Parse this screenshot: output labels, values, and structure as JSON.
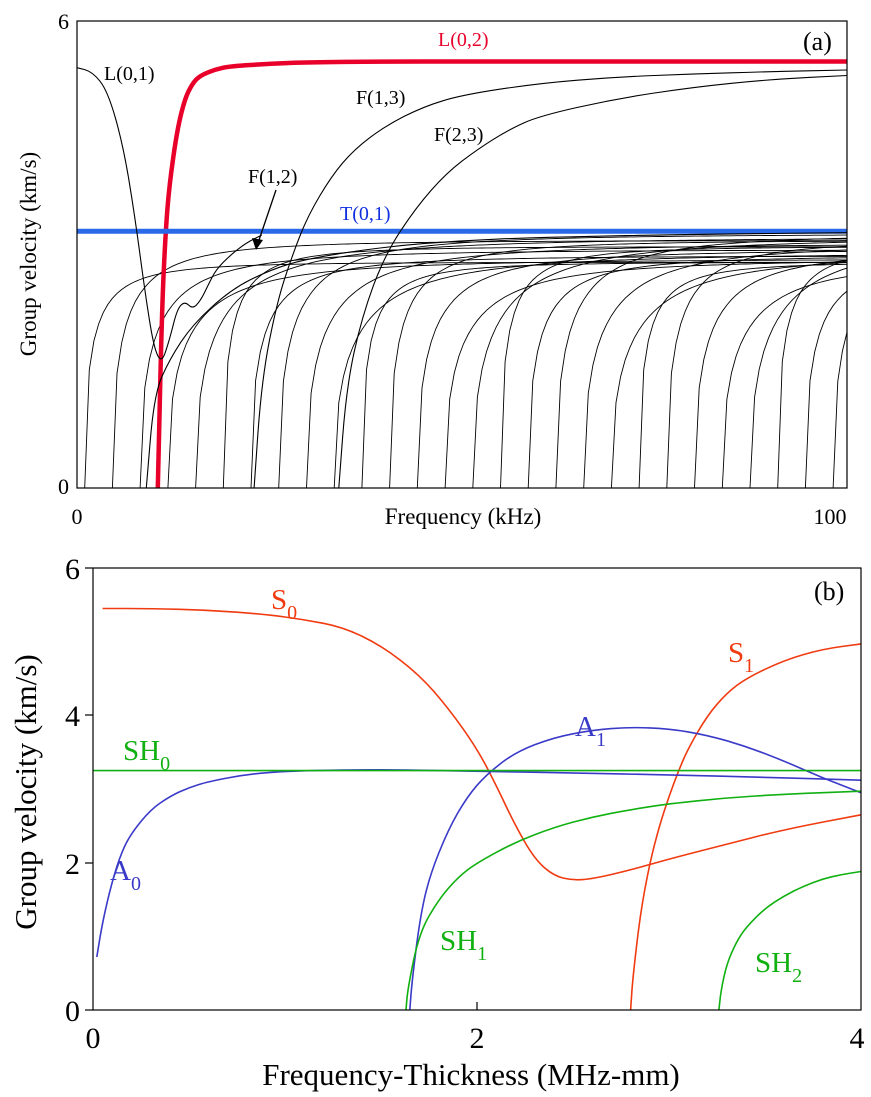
{
  "chart_data": [
    {
      "type": "line",
      "panel_label": "(a)",
      "xlabel": "Frequency (kHz)",
      "ylabel": "Group velocity (km/s)",
      "xlim": [
        0,
        100
      ],
      "ylim": [
        0,
        6
      ],
      "x_ticks": [
        "0",
        "100"
      ],
      "y_ticks": [
        "0",
        "6"
      ],
      "grid": false,
      "annotations": [
        {
          "text": "L(0,2)",
          "color": "#e8002a"
        },
        {
          "text": "L(0,1)",
          "color": "#000000"
        },
        {
          "text": "F(1,3)",
          "color": "#000000"
        },
        {
          "text": "F(2,3)",
          "color": "#000000"
        },
        {
          "text": "F(1,2)",
          "color": "#000000"
        },
        {
          "text": "T(0,1)",
          "color": "#1030e0"
        }
      ],
      "series": [
        {
          "name": "L(0,2)",
          "color": "#e8002a",
          "x": [
            10.5,
            11,
            11.5,
            12,
            13,
            14,
            15,
            16,
            18,
            20,
            25,
            30,
            40,
            50,
            60,
            70,
            80,
            90,
            100
          ],
          "y": [
            0,
            2.2,
            3.3,
            3.9,
            4.6,
            5.0,
            5.2,
            5.3,
            5.38,
            5.42,
            5.45,
            5.47,
            5.48,
            5.48,
            5.48,
            5.48,
            5.48,
            5.48,
            5.48
          ]
        },
        {
          "name": "T(0,1)",
          "color": "#2a6ae8",
          "x": [
            0,
            100
          ],
          "y": [
            3.3,
            3.3
          ]
        },
        {
          "name": "L(0,1)",
          "color": "#000000",
          "x": [
            0,
            2,
            4,
            6,
            7.5,
            9,
            10,
            11,
            12,
            13,
            14,
            15,
            16,
            17,
            18,
            20,
            22,
            24
          ],
          "y": [
            5.4,
            5.35,
            5.1,
            4.4,
            3.5,
            2.4,
            1.8,
            1.6,
            1.9,
            2.3,
            2.4,
            2.3,
            2.4,
            2.6,
            2.8,
            3.0,
            3.15,
            3.25
          ]
        },
        {
          "name": "F(1,2)",
          "color": "#000000",
          "x": [
            9,
            10,
            12,
            15,
            20,
            25,
            30,
            40,
            50,
            60,
            80,
            100
          ],
          "y": [
            0,
            1.2,
            1.65,
            2.1,
            2.55,
            2.8,
            2.95,
            3.1,
            3.18,
            3.22,
            3.26,
            3.28
          ]
        },
        {
          "name": "F(1,3)",
          "color": "#000000",
          "x": [
            23,
            24,
            26,
            28,
            30,
            33,
            36,
            40,
            45,
            50,
            60,
            70,
            80,
            90,
            100
          ],
          "y": [
            0,
            1.4,
            2.4,
            3.0,
            3.5,
            4.0,
            4.35,
            4.65,
            4.9,
            5.05,
            5.2,
            5.28,
            5.32,
            5.35,
            5.37
          ]
        },
        {
          "name": "F(2,3)",
          "color": "#000000",
          "x": [
            34,
            35,
            37,
            40,
            44,
            48,
            52,
            56,
            60,
            70,
            80,
            90,
            100
          ],
          "y": [
            0,
            1.3,
            2.2,
            3.0,
            3.6,
            4.05,
            4.35,
            4.6,
            4.78,
            5.0,
            5.15,
            5.25,
            5.3
          ]
        }
      ]
    },
    {
      "type": "line",
      "panel_label": "(b)",
      "xlabel": "Frequency-Thickness (MHz-mm)",
      "ylabel": "Group velocity (km/s)",
      "xlim": [
        0,
        4
      ],
      "ylim": [
        0,
        6
      ],
      "x_ticks": [
        "0",
        "2",
        "4"
      ],
      "y_ticks": [
        "0",
        "2",
        "4",
        "6"
      ],
      "grid": false,
      "annotations": [
        {
          "text": "S",
          "sub": "0",
          "color": "#f03a10"
        },
        {
          "text": "S",
          "sub": "1",
          "color": "#f03a10"
        },
        {
          "text": "A",
          "sub": "1",
          "color": "#3a3ac8"
        },
        {
          "text": "SH",
          "sub": "0",
          "color": "#10b010"
        },
        {
          "text": "A",
          "sub": "0",
          "color": "#3a3ac8"
        },
        {
          "text": "SH",
          "sub": "1",
          "color": "#10b010"
        },
        {
          "text": "SH",
          "sub": "2",
          "color": "#10b010"
        }
      ],
      "series": [
        {
          "name": "S0",
          "color": "#f03a10",
          "x": [
            0.05,
            0.3,
            0.6,
            0.9,
            1.1,
            1.3,
            1.5,
            1.7,
            1.85,
            2.0,
            2.1,
            2.2,
            2.3,
            2.4,
            2.5,
            2.6,
            2.8,
            3.0,
            3.3,
            3.6,
            4.0
          ],
          "y": [
            5.45,
            5.45,
            5.43,
            5.37,
            5.3,
            5.2,
            4.95,
            4.55,
            4.1,
            3.55,
            3.05,
            2.5,
            2.05,
            1.82,
            1.76,
            1.78,
            1.9,
            2.05,
            2.25,
            2.45,
            2.65
          ]
        },
        {
          "name": "S1",
          "color": "#f03a10",
          "x": [
            2.8,
            2.81,
            2.85,
            2.9,
            2.95,
            3.0,
            3.05,
            3.1,
            3.2,
            3.3,
            3.4,
            3.6,
            3.8,
            4.0
          ],
          "y": [
            0,
            0.4,
            1.3,
            2.0,
            2.5,
            2.9,
            3.25,
            3.55,
            4.0,
            4.3,
            4.5,
            4.75,
            4.9,
            4.97
          ]
        },
        {
          "name": "A1",
          "color": "#3a3ac8",
          "x": [
            1.65,
            1.66,
            1.7,
            1.75,
            1.85,
            1.95,
            2.05,
            2.2,
            2.4,
            2.6,
            2.8,
            3.0,
            3.2,
            3.4,
            3.6,
            3.8,
            4.0
          ],
          "y": [
            0,
            0.35,
            1.2,
            1.8,
            2.45,
            2.9,
            3.2,
            3.5,
            3.7,
            3.8,
            3.84,
            3.82,
            3.73,
            3.58,
            3.38,
            3.15,
            2.95
          ]
        },
        {
          "name": "A0",
          "color": "#3a3ac8",
          "x": [
            0.02,
            0.05,
            0.1,
            0.15,
            0.2,
            0.3,
            0.4,
            0.5,
            0.6,
            0.8,
            1.0,
            1.3,
            1.6,
            2.0,
            2.5,
            3.0,
            3.5,
            4.0
          ],
          "y": [
            0.72,
            1.2,
            1.75,
            2.15,
            2.4,
            2.72,
            2.9,
            3.02,
            3.1,
            3.2,
            3.24,
            3.26,
            3.26,
            3.24,
            3.22,
            3.19,
            3.16,
            3.12
          ]
        },
        {
          "name": "SH0",
          "color": "#10b010",
          "x": [
            0,
            4
          ],
          "y": [
            3.25,
            3.25
          ]
        },
        {
          "name": "SH1",
          "color": "#10b010",
          "x": [
            1.63,
            1.64,
            1.7,
            1.8,
            1.9,
            2.0,
            2.2,
            2.4,
            2.6,
            2.8,
            3.0,
            3.3,
            3.6,
            4.0
          ],
          "y": [
            0,
            0.3,
            1.05,
            1.5,
            1.8,
            2.0,
            2.28,
            2.48,
            2.62,
            2.72,
            2.8,
            2.88,
            2.93,
            2.97
          ]
        },
        {
          "name": "SH2",
          "color": "#10b010",
          "x": [
            3.26,
            3.27,
            3.3,
            3.35,
            3.4,
            3.5,
            3.6,
            3.7,
            3.8,
            3.9,
            4.0
          ],
          "y": [
            0,
            0.25,
            0.62,
            0.92,
            1.12,
            1.38,
            1.55,
            1.68,
            1.78,
            1.84,
            1.88
          ]
        }
      ]
    }
  ]
}
